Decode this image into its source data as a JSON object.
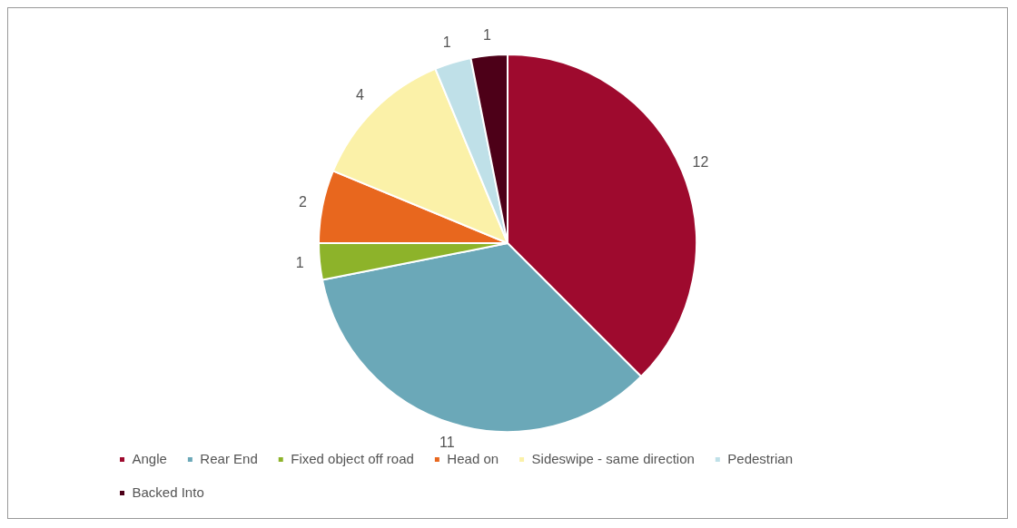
{
  "chart_data": {
    "type": "pie",
    "categories": [
      "Angle",
      "Rear End",
      "Fixed object off road",
      "Head on",
      "Sideswipe - same direction",
      "Pedestrian",
      "Backed Into"
    ],
    "values": [
      12,
      11,
      1,
      2,
      4,
      1,
      1
    ],
    "colors": [
      "#9e0a2e",
      "#6ba8b8",
      "#8db32a",
      "#e8671e",
      "#fbf1a8",
      "#bfe0e8",
      "#4d0018"
    ],
    "data_labels": true,
    "legend": "bottom"
  }
}
